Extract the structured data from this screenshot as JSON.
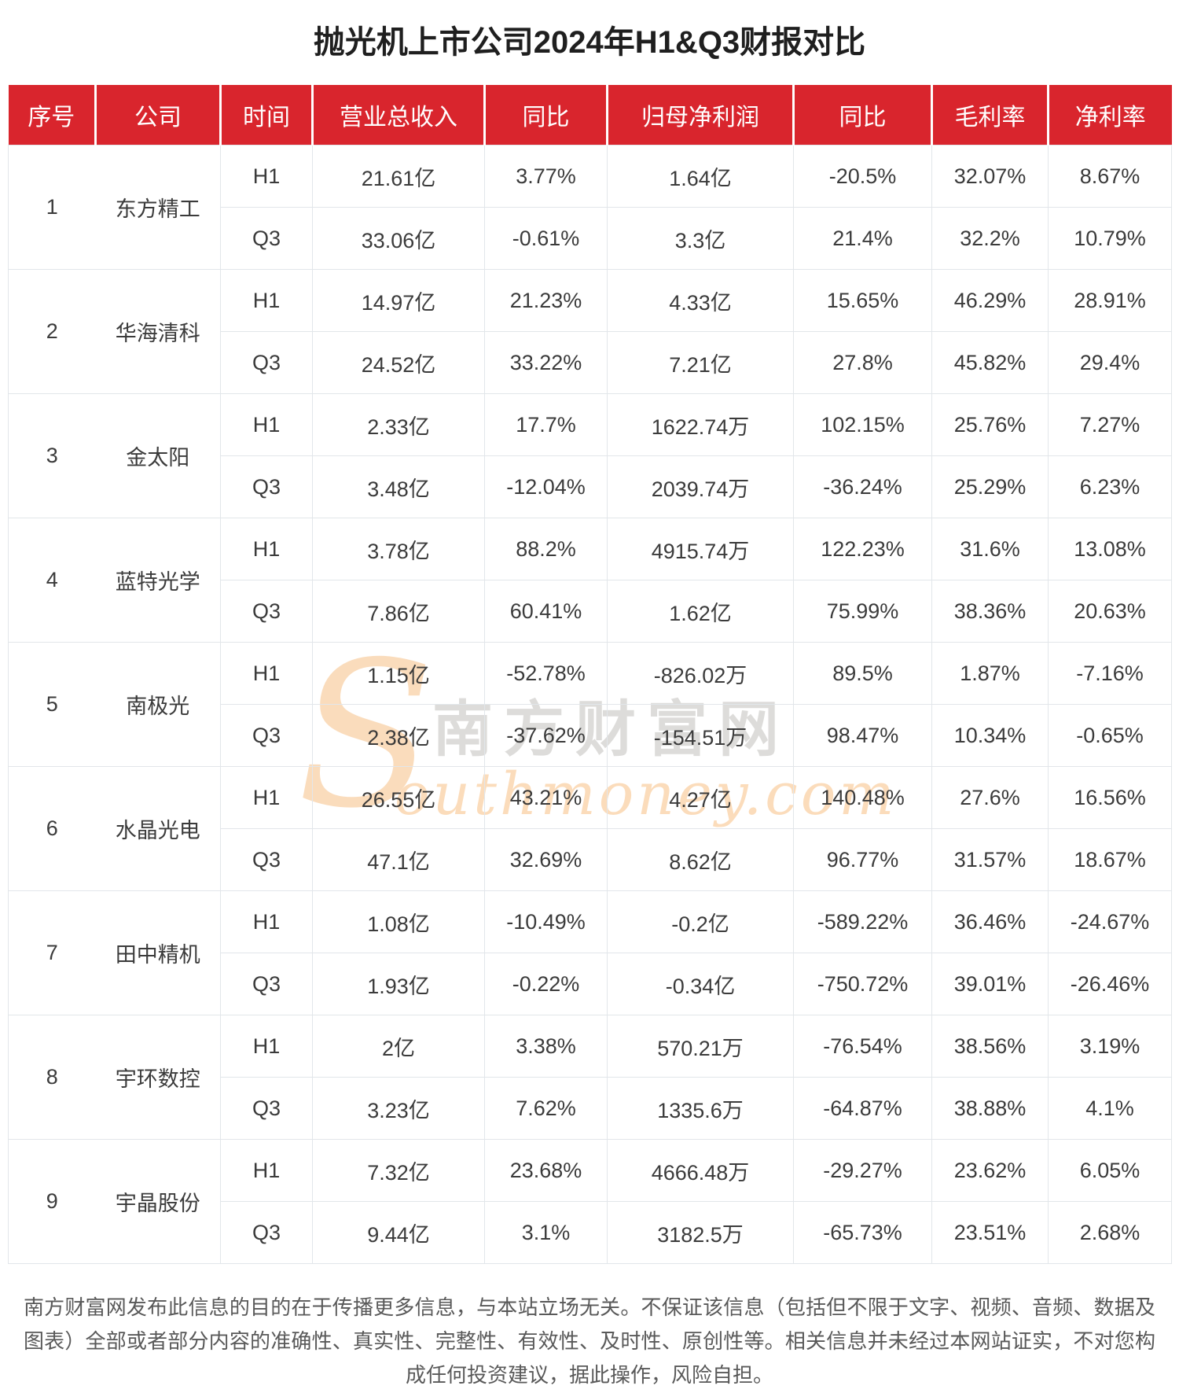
{
  "title": "抛光机上市公司2024年H1&Q3财报对比",
  "colors": {
    "header_bg": "#d9252d",
    "header_text": "#ffffff",
    "border": "#e2e6ea",
    "body_text": "#3b3b3b",
    "watermark_orange": "#f5b26a",
    "watermark_gray": "#9e9a94"
  },
  "chart_data": {
    "type": "table",
    "title": "抛光机上市公司2024年H1&Q3财报对比",
    "columns": [
      "序号",
      "公司",
      "时间",
      "营业总收入",
      "同比",
      "归母净利润",
      "同比",
      "毛利率",
      "净利率"
    ],
    "companies": [
      {
        "index": "1",
        "name": "东方精工",
        "rows": [
          [
            "H1",
            "21.61亿",
            "3.77%",
            "1.64亿",
            "-20.5%",
            "32.07%",
            "8.67%"
          ],
          [
            "Q3",
            "33.06亿",
            "-0.61%",
            "3.3亿",
            "21.4%",
            "32.2%",
            "10.79%"
          ]
        ]
      },
      {
        "index": "2",
        "name": "华海清科",
        "rows": [
          [
            "H1",
            "14.97亿",
            "21.23%",
            "4.33亿",
            "15.65%",
            "46.29%",
            "28.91%"
          ],
          [
            "Q3",
            "24.52亿",
            "33.22%",
            "7.21亿",
            "27.8%",
            "45.82%",
            "29.4%"
          ]
        ]
      },
      {
        "index": "3",
        "name": "金太阳",
        "rows": [
          [
            "H1",
            "2.33亿",
            "17.7%",
            "1622.74万",
            "102.15%",
            "25.76%",
            "7.27%"
          ],
          [
            "Q3",
            "3.48亿",
            "-12.04%",
            "2039.74万",
            "-36.24%",
            "25.29%",
            "6.23%"
          ]
        ]
      },
      {
        "index": "4",
        "name": "蓝特光学",
        "rows": [
          [
            "H1",
            "3.78亿",
            "88.2%",
            "4915.74万",
            "122.23%",
            "31.6%",
            "13.08%"
          ],
          [
            "Q3",
            "7.86亿",
            "60.41%",
            "1.62亿",
            "75.99%",
            "38.36%",
            "20.63%"
          ]
        ]
      },
      {
        "index": "5",
        "name": "南极光",
        "rows": [
          [
            "H1",
            "1.15亿",
            "-52.78%",
            "-826.02万",
            "89.5%",
            "1.87%",
            "-7.16%"
          ],
          [
            "Q3",
            "2.38亿",
            "-37.62%",
            "-154.51万",
            "98.47%",
            "10.34%",
            "-0.65%"
          ]
        ]
      },
      {
        "index": "6",
        "name": "水晶光电",
        "rows": [
          [
            "H1",
            "26.55亿",
            "43.21%",
            "4.27亿",
            "140.48%",
            "27.6%",
            "16.56%"
          ],
          [
            "Q3",
            "47.1亿",
            "32.69%",
            "8.62亿",
            "96.77%",
            "31.57%",
            "18.67%"
          ]
        ]
      },
      {
        "index": "7",
        "name": "田中精机",
        "rows": [
          [
            "H1",
            "1.08亿",
            "-10.49%",
            "-0.2亿",
            "-589.22%",
            "36.46%",
            "-24.67%"
          ],
          [
            "Q3",
            "1.93亿",
            "-0.22%",
            "-0.34亿",
            "-750.72%",
            "39.01%",
            "-26.46%"
          ]
        ]
      },
      {
        "index": "8",
        "name": "宇环数控",
        "rows": [
          [
            "H1",
            "2亿",
            "3.38%",
            "570.21万",
            "-76.54%",
            "38.56%",
            "3.19%"
          ],
          [
            "Q3",
            "3.23亿",
            "7.62%",
            "1335.6万",
            "-64.87%",
            "38.88%",
            "4.1%"
          ]
        ]
      },
      {
        "index": "9",
        "name": "宇晶股份",
        "rows": [
          [
            "H1",
            "7.32亿",
            "23.68%",
            "4666.48万",
            "-29.27%",
            "23.62%",
            "6.05%"
          ],
          [
            "Q3",
            "9.44亿",
            "3.1%",
            "3182.5万",
            "-65.73%",
            "23.51%",
            "2.68%"
          ]
        ]
      }
    ]
  },
  "watermark": {
    "initial": "S",
    "site_cn": "南方财富网",
    "site_en": "outhmoney.com"
  },
  "footer": {
    "disclaimer": "南方财富网发布此信息的目的在于传播更多信息，与本站立场无关。不保证该信息（包括但不限于文字、视频、音频、数据及图表）全部或者部分内容的准确性、真实性、完整性、有效性、及时性、原创性等。相关信息并未经过本网站证实，不对您构成任何投资建议，据此操作，风险自担。"
  }
}
